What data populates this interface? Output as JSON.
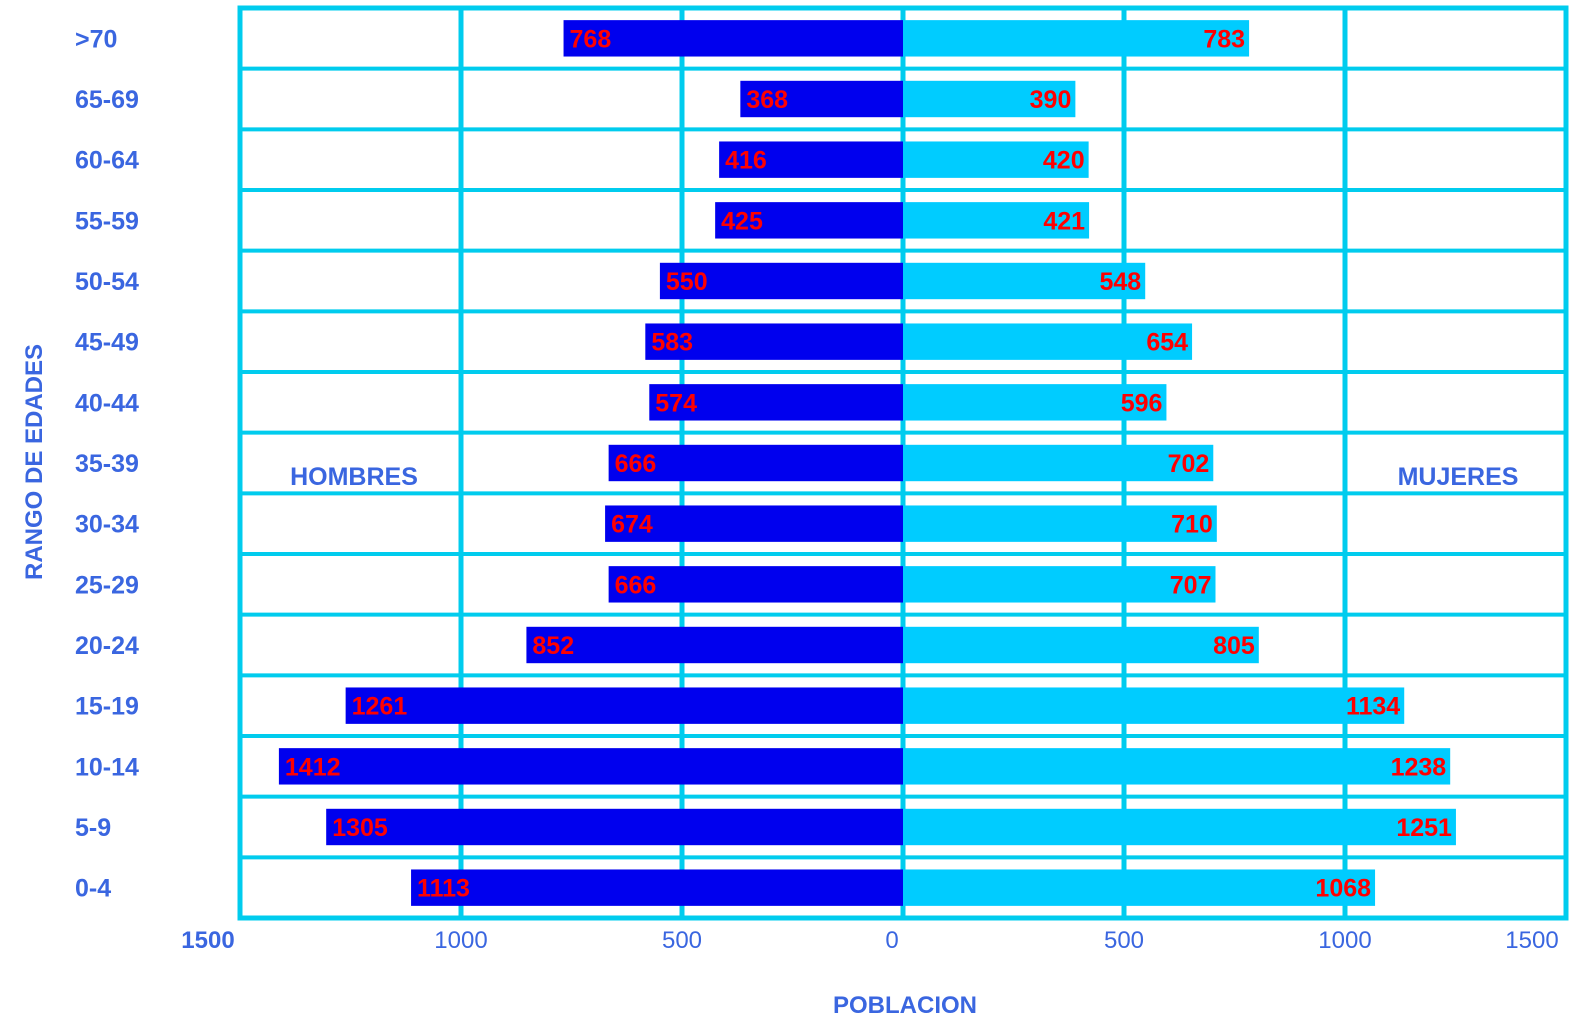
{
  "chart_data": {
    "type": "bar",
    "orientation": "horizontal-population-pyramid",
    "xlabel": "POBLACION",
    "ylabel": "RANGO DE EDADES",
    "side_labels": {
      "left": "HOMBRES",
      "right": "MUJERES"
    },
    "categories": [
      "0-4",
      "5-9",
      "10-14",
      "15-19",
      "20-24",
      "25-29",
      "30-34",
      "35-39",
      "40-44",
      "45-49",
      "50-54",
      "55-59",
      "60-64",
      "65-69",
      ">70"
    ],
    "series": [
      {
        "name": "HOMBRES",
        "side": "left",
        "color": "#0000ee",
        "values": [
          1113,
          1305,
          1412,
          1261,
          852,
          666,
          674,
          666,
          574,
          583,
          550,
          425,
          416,
          368,
          768
        ]
      },
      {
        "name": "MUJERES",
        "side": "right",
        "color": "#00ccff",
        "values": [
          1068,
          1251,
          1238,
          1134,
          805,
          707,
          710,
          702,
          596,
          654,
          548,
          421,
          420,
          390,
          783
        ]
      }
    ],
    "xlim": [
      -1500,
      1500
    ],
    "xticks": [
      {
        "value": -1500,
        "label": "1500"
      },
      {
        "value": -1000,
        "label": "1000"
      },
      {
        "value": -500,
        "label": "500"
      },
      {
        "value": 0,
        "label": "0"
      },
      {
        "value": 500,
        "label": "500"
      },
      {
        "value": 1000,
        "label": "1000"
      },
      {
        "value": 1500,
        "label": "1500"
      }
    ],
    "grid": true,
    "colors": {
      "grid": "#00ccee",
      "label_text": "#3a66e0",
      "value_text": "#ff0000"
    }
  }
}
